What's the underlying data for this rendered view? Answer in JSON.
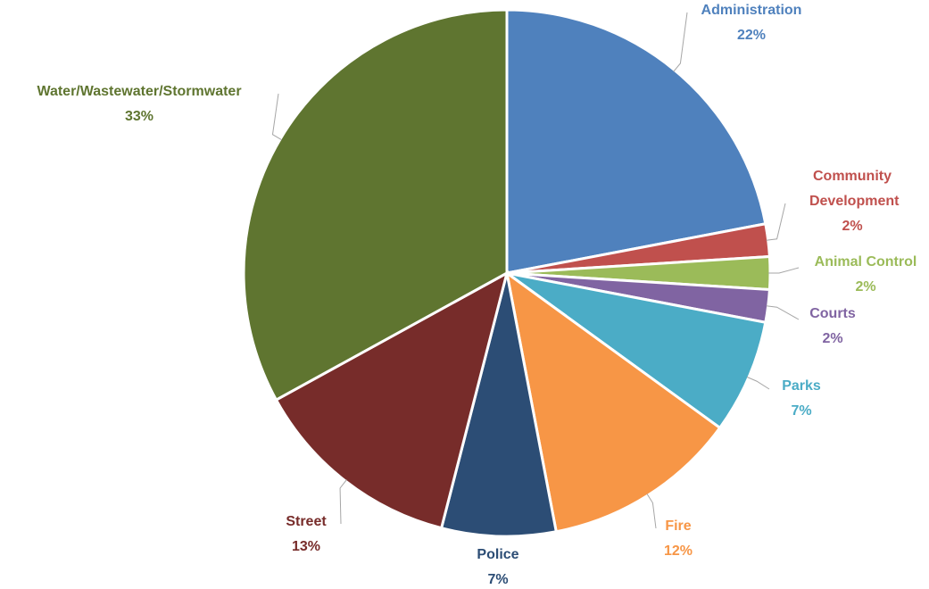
{
  "chart_data": {
    "type": "pie",
    "categories": [
      "Administration",
      "Community Development",
      "Animal Control",
      "Courts",
      "Parks",
      "Fire",
      "Police",
      "Street",
      "Water/Wastewater/Stormwater"
    ],
    "values": [
      22,
      2,
      2,
      2,
      7,
      12,
      7,
      13,
      33
    ],
    "value_labels": [
      "22%",
      "2%",
      "2%",
      "2%",
      "7%",
      "12%",
      "7%",
      "13%",
      "33%"
    ],
    "colors": [
      "#4f81bd",
      "#c0504d",
      "#9bbb59",
      "#8064a2",
      "#4bacc6",
      "#f79646",
      "#2c4d75",
      "#772c2a",
      "#5f7530"
    ]
  }
}
